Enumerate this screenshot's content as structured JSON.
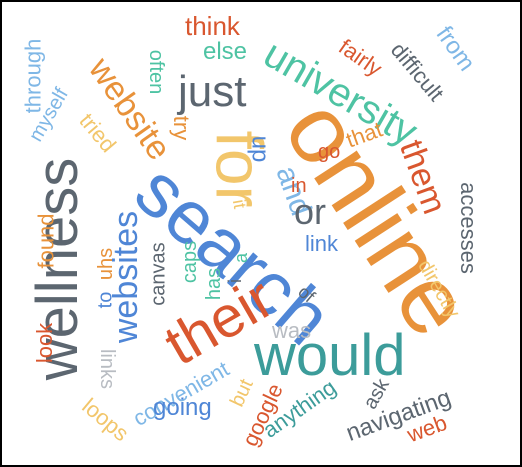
{
  "palette": {
    "orange": "#E8923A",
    "blue": "#4F86D6",
    "slate": "#5C6670",
    "teal": "#3C9C9A",
    "red": "#D9572F",
    "yellow": "#F2C66B",
    "lightblue": "#7FB7E6",
    "mint": "#4EC3A3"
  },
  "words": {
    "online": "online",
    "search": "search",
    "for": "for",
    "their": "their",
    "would": "would",
    "wellness": "wellness",
    "university": "university",
    "website": "website",
    "websites": "websites",
    "just": "just",
    "them": "them",
    "and": "and",
    "or": "or",
    "think": "think",
    "else": "else",
    "fairly": "fairly",
    "difficult": "difficult",
    "from": "from",
    "through": "through",
    "myself": "myself",
    "often": "often",
    "tried": "tried",
    "try": "try",
    "up": "up",
    "that": "that",
    "go": "go",
    "in": "in",
    "it": "it",
    "link": "link",
    "accesses": "accesses",
    "directly": "directly",
    "found": "found",
    "to": "to",
    "uhs": "uhs",
    "canvas": "canvas",
    "caps": "caps",
    "has": "has",
    "a": "a",
    "i": "i",
    "of": "of",
    "was": "was",
    "look": "look",
    "links": "links",
    "loops": "loops",
    "convenient": "convenient",
    "going": "going",
    "but": "but",
    "google": "google",
    "anything": "anything",
    "ask": "ask",
    "navigating": "navigating",
    "web": "web"
  }
}
